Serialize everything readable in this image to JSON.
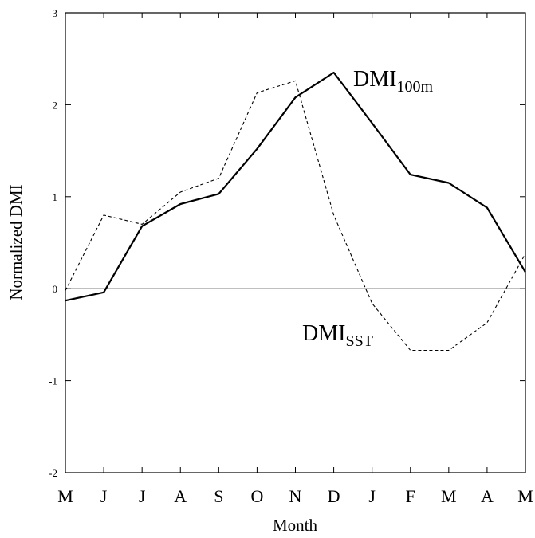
{
  "chart_data": {
    "type": "line",
    "xlabel": "Month",
    "ylabel": "Normalized DMI",
    "categories": [
      "M",
      "J",
      "J",
      "A",
      "S",
      "O",
      "N",
      "D",
      "J",
      "F",
      "M",
      "A",
      "M"
    ],
    "ylim": [
      -2,
      3
    ],
    "yticks": [
      "-2",
      "-1",
      "0",
      "1",
      "2",
      "3"
    ],
    "series": [
      {
        "name": "DMI_100m",
        "label_main": "DMI",
        "label_sub": "100m",
        "style": "solid",
        "values": [
          -0.13,
          -0.04,
          0.68,
          0.92,
          1.03,
          1.52,
          2.08,
          2.35,
          1.8,
          1.24,
          1.15,
          0.88,
          0.18
        ]
      },
      {
        "name": "DMI_SST",
        "label_main": "DMI",
        "label_sub": "SST",
        "style": "dashed",
        "values": [
          -0.02,
          0.8,
          0.7,
          1.05,
          1.2,
          2.13,
          2.26,
          0.8,
          -0.16,
          -0.67,
          -0.67,
          -0.37,
          0.38
        ]
      }
    ],
    "zero_line": true,
    "grid": false,
    "colors": {
      "line": "#000000",
      "background": "#ffffff"
    }
  }
}
